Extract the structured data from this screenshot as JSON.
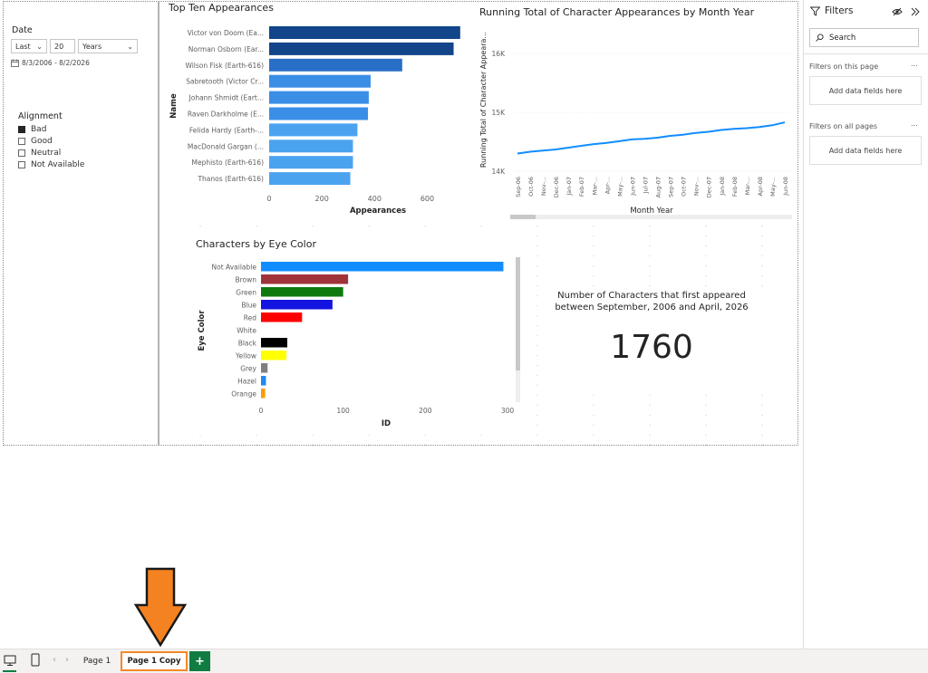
{
  "slicer": {
    "date_title": "Date",
    "relative_mode": "Last",
    "relative_count": "20",
    "relative_unit": "Years",
    "date_range": "8/3/2006 - 8/2/2026",
    "alignment_title": "Alignment",
    "alignment_options": [
      {
        "label": "Bad",
        "checked": true
      },
      {
        "label": "Good",
        "checked": false
      },
      {
        "label": "Neutral",
        "checked": false
      },
      {
        "label": "Not Available",
        "checked": false
      }
    ]
  },
  "top_ten": {
    "title": "Top Ten Appearances",
    "ylabel": "Name",
    "xlabel": "Appearances",
    "ticks": [
      "0",
      "200",
      "400",
      "600"
    ],
    "bar_colors": [
      "#12458a",
      "#12458a",
      "#2a6fc7",
      "#3a8ee6",
      "#3a8ee6",
      "#3a8ee6",
      "#4ba3f0",
      "#4ba3f0",
      "#4ba3f0",
      "#4ba3f0"
    ]
  },
  "running_total": {
    "title": "Running Total of Character Appearances by Month Year",
    "ylabel": "Running Total of Character Appeara...",
    "xlabel": "Month Year",
    "yticks": [
      "16K",
      "15K",
      "14K"
    ],
    "line_color": "#118dff"
  },
  "eye_color": {
    "title": "Characters by Eye Color",
    "ylabel": "Eye Color",
    "xlabel": "ID",
    "ticks": [
      "0",
      "100",
      "200",
      "300"
    ]
  },
  "card": {
    "caption_line1": "Number of Characters that first appeared",
    "caption_line2": "between September, 2006 and April, 2026",
    "value": "1760"
  },
  "filters": {
    "title": "Filters",
    "search_placeholder": "Search",
    "on_this_page": "Filters on this page",
    "on_all_pages": "Filters on all pages",
    "add_fields": "Add data fields here",
    "more": "..."
  },
  "pages": {
    "tabs": [
      "Page 1",
      "Page 1 Copy"
    ],
    "add_label": "+",
    "prev": "‹",
    "next": "›"
  },
  "chart_data": [
    {
      "type": "bar",
      "orientation": "horizontal",
      "title": "Top Ten Appearances",
      "xlabel": "Appearances",
      "ylabel": "Name",
      "categories": [
        "Victor von Doom (Ea...",
        "Norman Osborn (Ear...",
        "Wilson Fisk (Earth-616)",
        "Sabretooth (Victor Cr...",
        "Johann Shmidt (Eart...",
        "Raven Darkholme (E...",
        "Felida Hardy (Earth-...",
        "MacDonald Gargan (...",
        "Mephisto (Earth-616)",
        "Thanos (Earth-616)"
      ],
      "values": [
        725,
        700,
        505,
        385,
        378,
        375,
        335,
        318,
        318,
        308
      ],
      "xlim": [
        0,
        760
      ]
    },
    {
      "type": "line",
      "title": "Running Total of Character Appearances by Month Year",
      "xlabel": "Month Year",
      "ylabel": "Running Total of Character Appeara...",
      "categories": [
        "Sep-06",
        "Oct-06",
        "Nov-...",
        "Dec-06",
        "Jan-07",
        "Feb-07",
        "Mar-...",
        "Apr-...",
        "May-...",
        "Jun-07",
        "Jul-07",
        "Aug-07",
        "Sep-07",
        "Oct-07",
        "Nov-...",
        "Dec-07",
        "Jan-08",
        "Feb-08",
        "Mar-...",
        "Apr-08",
        "May-...",
        "Jun-08"
      ],
      "values": [
        14300,
        14330,
        14350,
        14370,
        14400,
        14430,
        14460,
        14480,
        14510,
        14540,
        14550,
        14570,
        14600,
        14620,
        14650,
        14670,
        14700,
        14720,
        14730,
        14750,
        14780,
        14830
      ],
      "ylim": [
        14000,
        16200
      ]
    },
    {
      "type": "bar",
      "orientation": "horizontal",
      "title": "Characters by Eye Color",
      "xlabel": "ID",
      "ylabel": "Eye Color",
      "categories": [
        "Not Available",
        "Brown",
        "Green",
        "Blue",
        "Red",
        "White",
        "Black",
        "Yellow",
        "Grey",
        "Hazel",
        "Orange"
      ],
      "values": [
        295,
        106,
        100,
        87,
        50,
        0,
        32,
        31,
        8,
        6,
        5
      ],
      "colors": [
        "#118dff",
        "#a0333a",
        "#0e7a0e",
        "#1414e0",
        "#ff0000",
        "#ffffff",
        "#000000",
        "#ffff00",
        "#808080",
        "#2088ee",
        "#ff9a00"
      ],
      "xlim": [
        0,
        300
      ]
    }
  ]
}
